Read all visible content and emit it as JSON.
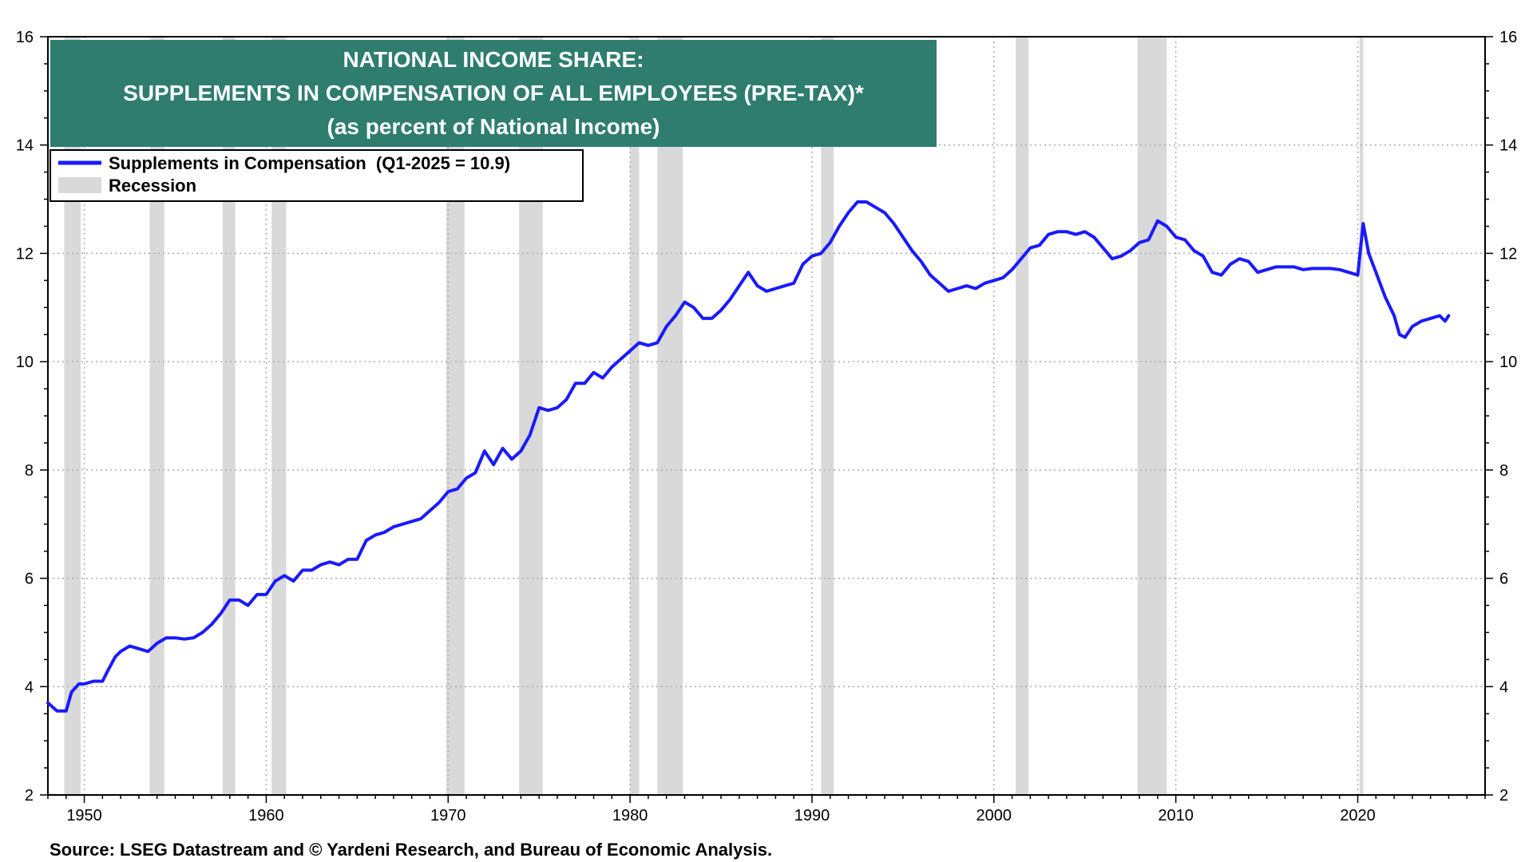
{
  "chart_data": {
    "type": "line",
    "title": "NATIONAL INCOME SHARE:",
    "subtitle": "SUPPLEMENTS IN COMPENSATION OF ALL EMPLOYEES (PRE-TAX)*",
    "subtitle2": "(as percent of National Income)",
    "source": "Source: LSEG Datastream and © Yardeni Research, and Bureau of Economic Analysis.",
    "xlabel": "",
    "ylabel": "",
    "xlim": [
      1948,
      2027
    ],
    "ylim": [
      2,
      16
    ],
    "y_ticks": [
      2,
      4,
      6,
      8,
      10,
      12,
      14,
      16
    ],
    "x_ticks": [
      1950,
      1960,
      1970,
      1980,
      1990,
      2000,
      2010,
      2020
    ],
    "grid": true,
    "legend_position": "top-left",
    "legend": [
      {
        "label": "Supplements in Compensation  (Q1-2025 = 10.9)",
        "kind": "line",
        "color": "#1a1aff"
      },
      {
        "label": "Recession",
        "kind": "band",
        "color": "#d9d9d9"
      }
    ],
    "colors": {
      "line": "#1a1aff",
      "recession": "#d9d9d9",
      "title_bg": "#2e7d6f"
    },
    "recessions": [
      [
        1948.9,
        1949.8
      ],
      [
        1953.6,
        1954.4
      ],
      [
        1957.6,
        1958.3
      ],
      [
        1960.3,
        1961.1
      ],
      [
        1969.9,
        1970.9
      ],
      [
        1973.9,
        1975.2
      ],
      [
        1980.0,
        1980.5
      ],
      [
        1981.5,
        1982.9
      ],
      [
        1990.5,
        1991.2
      ],
      [
        2001.2,
        2001.9
      ],
      [
        2007.9,
        2009.5
      ],
      [
        2020.1,
        2020.3
      ]
    ],
    "series": [
      {
        "name": "Supplements in Compensation",
        "x": [
          1948.0,
          1948.5,
          1949.0,
          1949.3,
          1949.7,
          1950.0,
          1950.5,
          1951.0,
          1951.3,
          1951.7,
          1952.0,
          1952.5,
          1953.0,
          1953.5,
          1954.0,
          1954.5,
          1955.0,
          1955.5,
          1956.0,
          1956.5,
          1957.0,
          1957.5,
          1958.0,
          1958.5,
          1959.0,
          1959.5,
          1960.0,
          1960.5,
          1961.0,
          1961.5,
          1962.0,
          1962.5,
          1963.0,
          1963.5,
          1964.0,
          1964.5,
          1965.0,
          1965.5,
          1966.0,
          1966.5,
          1967.0,
          1967.5,
          1968.0,
          1968.5,
          1969.0,
          1969.5,
          1970.0,
          1970.5,
          1971.0,
          1971.5,
          1972.0,
          1972.5,
          1973.0,
          1973.5,
          1974.0,
          1974.5,
          1975.0,
          1975.5,
          1976.0,
          1976.5,
          1977.0,
          1977.5,
          1978.0,
          1978.5,
          1979.0,
          1979.5,
          1980.0,
          1980.5,
          1981.0,
          1981.5,
          1982.0,
          1982.5,
          1983.0,
          1983.5,
          1984.0,
          1984.5,
          1985.0,
          1985.5,
          1986.0,
          1986.5,
          1987.0,
          1987.5,
          1988.0,
          1988.5,
          1989.0,
          1989.5,
          1990.0,
          1990.5,
          1991.0,
          1991.5,
          1992.0,
          1992.5,
          1993.0,
          1993.5,
          1994.0,
          1994.5,
          1995.0,
          1995.5,
          1996.0,
          1996.5,
          1997.0,
          1997.5,
          1998.0,
          1998.5,
          1999.0,
          1999.5,
          2000.0,
          2000.5,
          2001.0,
          2001.5,
          2002.0,
          2002.5,
          2003.0,
          2003.5,
          2004.0,
          2004.5,
          2005.0,
          2005.5,
          2006.0,
          2006.5,
          2007.0,
          2007.5,
          2008.0,
          2008.5,
          2009.0,
          2009.5,
          2010.0,
          2010.5,
          2011.0,
          2011.5,
          2012.0,
          2012.5,
          2013.0,
          2013.5,
          2014.0,
          2014.5,
          2015.0,
          2015.5,
          2016.0,
          2016.5,
          2017.0,
          2017.5,
          2018.0,
          2018.5,
          2019.0,
          2019.5,
          2020.0,
          2020.3,
          2020.6,
          2021.0,
          2021.5,
          2022.0,
          2022.3,
          2022.6,
          2023.0,
          2023.5,
          2024.0,
          2024.5,
          2024.8,
          2025.0
        ],
        "values": [
          3.7,
          3.55,
          3.55,
          3.9,
          4.05,
          4.05,
          4.1,
          4.1,
          4.3,
          4.55,
          4.65,
          4.75,
          4.7,
          4.65,
          4.8,
          4.9,
          4.9,
          4.88,
          4.9,
          5.0,
          5.15,
          5.35,
          5.6,
          5.6,
          5.5,
          5.7,
          5.7,
          5.95,
          6.05,
          5.95,
          6.15,
          6.15,
          6.25,
          6.3,
          6.25,
          6.35,
          6.35,
          6.7,
          6.8,
          6.85,
          6.95,
          7.0,
          7.05,
          7.1,
          7.25,
          7.4,
          7.6,
          7.65,
          7.85,
          7.95,
          8.35,
          8.1,
          8.4,
          8.2,
          8.35,
          8.65,
          9.15,
          9.1,
          9.15,
          9.3,
          9.6,
          9.6,
          9.8,
          9.7,
          9.9,
          10.05,
          10.2,
          10.35,
          10.3,
          10.35,
          10.65,
          10.85,
          11.1,
          11.0,
          10.8,
          10.8,
          10.95,
          11.15,
          11.4,
          11.65,
          11.4,
          11.3,
          11.35,
          11.4,
          11.45,
          11.8,
          11.95,
          12.0,
          12.2,
          12.5,
          12.75,
          12.95,
          12.95,
          12.85,
          12.75,
          12.55,
          12.3,
          12.05,
          11.85,
          11.6,
          11.45,
          11.3,
          11.35,
          11.4,
          11.35,
          11.45,
          11.5,
          11.55,
          11.7,
          11.9,
          12.1,
          12.15,
          12.35,
          12.4,
          12.4,
          12.35,
          12.4,
          12.3,
          12.1,
          11.9,
          11.95,
          12.05,
          12.2,
          12.25,
          12.6,
          12.5,
          12.3,
          12.25,
          12.05,
          11.95,
          11.65,
          11.6,
          11.8,
          11.9,
          11.85,
          11.65,
          11.7,
          11.75,
          11.75,
          11.75,
          11.7,
          11.72,
          11.72,
          11.72,
          11.7,
          11.65,
          11.6,
          12.55,
          12.0,
          11.65,
          11.2,
          10.85,
          10.5,
          10.45,
          10.65,
          10.75,
          10.8,
          10.85,
          10.75,
          10.85
        ]
      }
    ]
  }
}
